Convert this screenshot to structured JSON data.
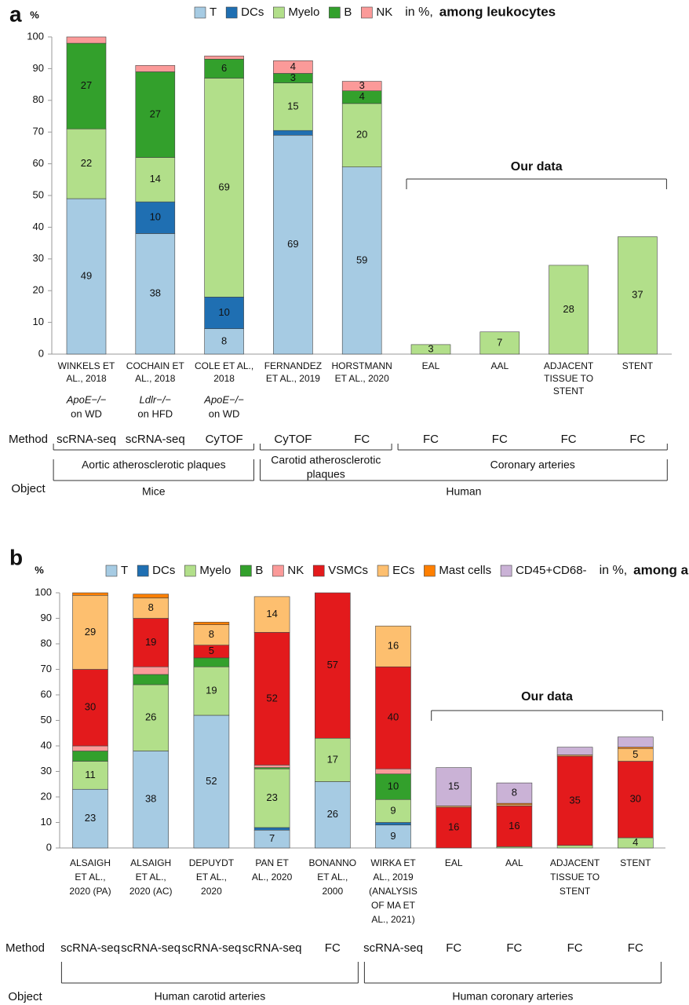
{
  "chart_data": [
    {
      "type": "bar",
      "stacked": true,
      "panel_label": "a",
      "y_label": "%",
      "legend_note": "in %,",
      "legend_note_bold": "among leukocytes",
      "categories": [
        [
          "WINKELS ET",
          "AL., 2018"
        ],
        [
          "COCHAIN ET",
          "AL., 2018"
        ],
        [
          "COLE ET AL.,",
          "2018"
        ],
        [
          "FERNANDEZ",
          "ET AL., 2019"
        ],
        [
          "HORSTMANN",
          "ET AL., 2020"
        ],
        [
          "EAL"
        ],
        [
          "AAL"
        ],
        [
          "ADJACENT",
          "TISSUE TO",
          "STENT"
        ],
        [
          "STENT"
        ]
      ],
      "sub_labels": [
        [
          "ApoE−/−",
          "on WD"
        ],
        [
          "Ldlr−/−",
          "on HFD"
        ],
        [
          "ApoE−/−",
          "on WD"
        ],
        null,
        null,
        null,
        null,
        null,
        null
      ],
      "series": [
        {
          "name": "T",
          "color": "#a6cbe3",
          "values": [
            49,
            38,
            8,
            69,
            59,
            null,
            null,
            null,
            null
          ],
          "value_labels": [
            "49",
            "38",
            "8",
            "69",
            "59",
            null,
            null,
            null,
            null
          ]
        },
        {
          "name": "DCs",
          "color": "#1f6fb2",
          "values": [
            null,
            10,
            10,
            1.5,
            null,
            null,
            null,
            null,
            null
          ],
          "value_labels": [
            null,
            "10",
            "10",
            null,
            null,
            null,
            null,
            null,
            null
          ]
        },
        {
          "name": "Myelo",
          "color": "#b2df8a",
          "values": [
            22,
            14,
            69,
            15,
            20,
            3,
            7,
            28,
            37
          ],
          "value_labels": [
            "22",
            "14",
            "69",
            "15",
            "20",
            "3",
            "7",
            "28",
            "37"
          ]
        },
        {
          "name": "B",
          "color": "#33a02c",
          "values": [
            27,
            27,
            6,
            3,
            4,
            null,
            null,
            null,
            null
          ],
          "value_labels": [
            "27",
            "27",
            "6",
            "3",
            "4",
            null,
            null,
            null,
            null
          ]
        },
        {
          "name": "NK",
          "color": "#fb9a99",
          "values": [
            2,
            2,
            1,
            4,
            3,
            null,
            null,
            null,
            null
          ],
          "value_labels": [
            null,
            null,
            null,
            "4",
            "3",
            null,
            null,
            null,
            null
          ]
        }
      ],
      "ylim": [
        0,
        100
      ],
      "yticks": [
        0,
        10,
        20,
        30,
        40,
        50,
        60,
        70,
        80,
        90,
        100
      ],
      "annotation": "Our data",
      "method_label": "Method",
      "methods": [
        "scRNA-seq",
        "scRNA-seq",
        "CyTOF",
        "CyTOF",
        "FC",
        "FC",
        "FC",
        "FC",
        "FC"
      ],
      "groups": [
        "Aortic atherosclerotic plaques",
        [
          "Carotid atherosclerotic",
          "plaques"
        ],
        "Coronary arteries"
      ],
      "object_label": "Object",
      "objects": [
        "Mice",
        "Human"
      ]
    },
    {
      "type": "bar",
      "stacked": true,
      "panel_label": "b",
      "y_label": "%",
      "legend_note": "in %,",
      "legend_note_bold": "among all cells",
      "categories": [
        [
          "ALSAIGH",
          "ET AL.,",
          "2020 (PA)"
        ],
        [
          "ALSAIGH",
          "ET AL.,",
          "2020 (AC)"
        ],
        [
          "DEPUYDT",
          "ET AL.,",
          "2020"
        ],
        [
          "PAN ET",
          "AL., 2020"
        ],
        [
          "BONANNO",
          "ET AL.,",
          "2000"
        ],
        [
          "WIRKA ET",
          "AL., 2019",
          "(ANALYSIS",
          "OF MA ET",
          "AL., 2021)"
        ],
        [
          "EAL"
        ],
        [
          "AAL"
        ],
        [
          "ADJACENT",
          "TISSUE TO",
          "STENT"
        ],
        [
          "STENT"
        ]
      ],
      "series": [
        {
          "name": "T",
          "color": "#a6cbe3",
          "values": [
            23,
            38,
            52,
            7,
            26,
            9,
            null,
            null,
            null,
            null
          ],
          "value_labels": [
            "23",
            "38",
            "52",
            "7",
            "26",
            "9",
            null,
            null,
            null,
            null
          ]
        },
        {
          "name": "DCs",
          "color": "#1f6fb2",
          "values": [
            null,
            null,
            null,
            1,
            null,
            1,
            null,
            null,
            null,
            null
          ],
          "value_labels": [
            null,
            null,
            null,
            null,
            null,
            null,
            null,
            null,
            null,
            null
          ]
        },
        {
          "name": "Myelo",
          "color": "#b2df8a",
          "values": [
            11,
            26,
            19,
            23,
            17,
            9,
            null,
            0.5,
            1,
            4
          ],
          "value_labels": [
            "11",
            "26",
            "19",
            "23",
            "17",
            "9",
            null,
            null,
            null,
            "4"
          ]
        },
        {
          "name": "B",
          "color": "#33a02c",
          "values": [
            4,
            4,
            3.5,
            0.5,
            null,
            10,
            null,
            null,
            null,
            null
          ],
          "value_labels": [
            null,
            null,
            null,
            null,
            null,
            "10",
            null,
            null,
            null,
            null
          ]
        },
        {
          "name": "NK",
          "color": "#fb9a99",
          "values": [
            2,
            3,
            null,
            1,
            null,
            2,
            null,
            null,
            null,
            null
          ],
          "value_labels": [
            null,
            null,
            null,
            null,
            null,
            null,
            null,
            null,
            null,
            null
          ]
        },
        {
          "name": "VSMCs",
          "color": "#e31a1c",
          "values": [
            30,
            19,
            5,
            52,
            57,
            40,
            16,
            16,
            35,
            30
          ],
          "value_labels": [
            "30",
            "19",
            "5",
            "52",
            "57",
            "40",
            "16",
            "16",
            "35",
            "30"
          ]
        },
        {
          "name": "ECs",
          "color": "#fdbf6f",
          "values": [
            29,
            8,
            8,
            14,
            null,
            16,
            0.5,
            0.5,
            0.5,
            5
          ],
          "value_labels": [
            "29",
            "8",
            "8",
            "14",
            null,
            "16",
            null,
            null,
            null,
            "5"
          ]
        },
        {
          "name": "Mast cells",
          "color": "#ff7f00",
          "values": [
            1,
            1.5,
            1,
            null,
            null,
            null,
            null,
            0.5,
            null,
            0.5
          ],
          "value_labels": [
            null,
            null,
            null,
            null,
            null,
            null,
            null,
            null,
            null,
            null
          ]
        },
        {
          "name": "CD45+CD68-",
          "color": "#cab2d6",
          "values": [
            null,
            null,
            null,
            null,
            null,
            null,
            15,
            8,
            3,
            4
          ],
          "value_labels": [
            null,
            null,
            null,
            null,
            null,
            null,
            "15",
            "8",
            null,
            null
          ]
        }
      ],
      "ylim": [
        0,
        100
      ],
      "yticks": [
        0,
        10,
        20,
        30,
        40,
        50,
        60,
        70,
        80,
        90,
        100
      ],
      "annotation": "Our data",
      "method_label": "Method",
      "methods": [
        "scRNA-seq",
        "scRNA-seq",
        "scRNA-seq",
        "scRNA-seq",
        "FC",
        "scRNA-seq",
        "FC",
        "FC",
        "FC",
        "FC"
      ],
      "object_label": "Object",
      "objects": [
        "Human carotid arteries",
        "Human coronary arteries"
      ]
    }
  ]
}
